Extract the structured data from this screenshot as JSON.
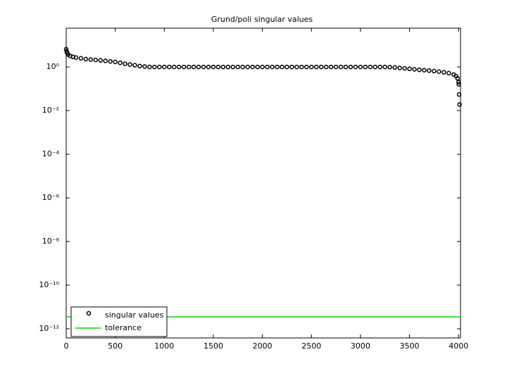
{
  "chart_data": {
    "type": "scatter",
    "title": "Grund/poli singular values",
    "log_y": true,
    "xlim": [
      0,
      4020
    ],
    "xticks": [
      0,
      500,
      1000,
      1500,
      2000,
      2500,
      3000,
      3500,
      4000
    ],
    "ylim": [
      3.8e-13,
      60
    ],
    "yticks": [
      {
        "value": 1e-12,
        "label": "10⁻¹²"
      },
      {
        "value": 1e-10,
        "label": "10⁻¹⁰"
      },
      {
        "value": 1e-08,
        "label": "10⁻⁸"
      },
      {
        "value": 1e-06,
        "label": "10⁻⁶"
      },
      {
        "value": 0.0001,
        "label": "10⁻⁴"
      },
      {
        "value": 0.01,
        "label": "10⁻²"
      },
      {
        "value": 1,
        "label": "10⁰"
      }
    ],
    "legend": "lower left",
    "series": [
      {
        "name": "singular values",
        "color": "#000000",
        "x": [
          0,
          5,
          10,
          20,
          40,
          70,
          100,
          150,
          200,
          250,
          300,
          350,
          400,
          450,
          500,
          550,
          600,
          650,
          700,
          750,
          800,
          850,
          900,
          950,
          1000,
          1050,
          1100,
          1150,
          1200,
          1250,
          1300,
          1350,
          1400,
          1450,
          1500,
          1550,
          1600,
          1650,
          1700,
          1750,
          1800,
          1850,
          1900,
          1950,
          2000,
          2050,
          2100,
          2150,
          2200,
          2250,
          2300,
          2350,
          2400,
          2450,
          2500,
          2550,
          2600,
          2650,
          2700,
          2750,
          2800,
          2850,
          2900,
          2950,
          3000,
          3050,
          3100,
          3150,
          3200,
          3250,
          3300,
          3350,
          3400,
          3450,
          3500,
          3550,
          3600,
          3650,
          3700,
          3750,
          3800,
          3850,
          3900,
          3950,
          3975,
          3990,
          4000,
          4003,
          4006,
          4010
        ],
        "values": [
          6.5,
          5.2,
          4.4,
          3.7,
          3.2,
          2.9,
          2.7,
          2.5,
          2.3,
          2.2,
          2.1,
          2.0,
          1.9,
          1.8,
          1.7,
          1.55,
          1.4,
          1.3,
          1.2,
          1.1,
          1.05,
          1,
          1,
          1,
          1,
          1,
          1,
          1,
          1,
          1,
          1,
          1,
          1,
          1,
          1,
          1,
          1,
          1,
          1,
          1,
          1,
          1,
          1,
          1,
          1,
          1,
          1,
          1,
          1,
          1,
          1,
          1,
          1,
          1,
          1,
          1,
          1,
          1,
          1,
          1,
          1,
          1,
          1,
          1,
          1,
          1,
          1,
          1,
          1,
          1,
          0.98,
          0.94,
          0.9,
          0.86,
          0.82,
          0.78,
          0.74,
          0.71,
          0.68,
          0.65,
          0.61,
          0.57,
          0.52,
          0.45,
          0.38,
          0.3,
          0.2,
          0.16,
          0.055,
          0.019
        ]
      },
      {
        "name": "tolerance",
        "color": "#00dd00",
        "type": "hline",
        "values": [
          3.5e-12
        ]
      }
    ]
  }
}
